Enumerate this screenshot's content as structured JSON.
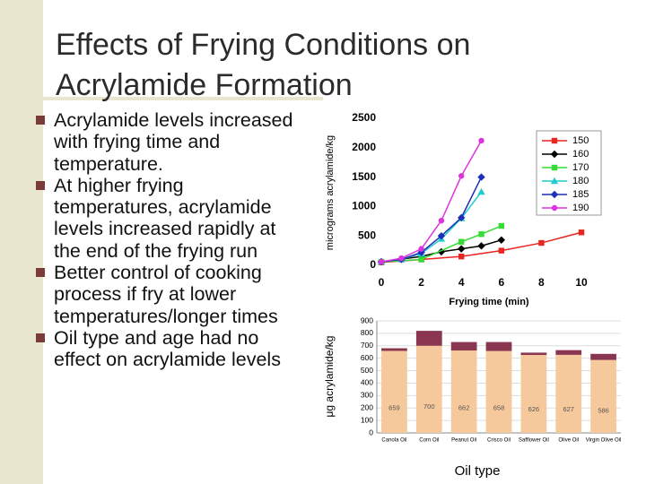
{
  "title": "Effects of Frying Conditions on Acrylamide Formation",
  "bullets": [
    "Acrylamide levels increased with frying time and temperature.",
    "At higher frying temperatures, acrylamide levels increased rapidly at the end of the frying run",
    "Better control of cooking process if fry at lower temperatures/longer times",
    "Oil type and age had no effect on acrylamide levels"
  ],
  "chart_data": [
    {
      "type": "line",
      "x_label": "Frying time (min)",
      "y_label": "micrograms acrylamide/kg",
      "xlim": [
        0,
        10
      ],
      "xticks": [
        0,
        2,
        4,
        6,
        8,
        10
      ],
      "ylim": [
        0,
        2500
      ],
      "yticks": [
        0,
        500,
        1000,
        1500,
        2000,
        2500
      ],
      "series": [
        {
          "name": "150",
          "color": "#e8251f",
          "marker": "square",
          "x": [
            0,
            2,
            4,
            6,
            8,
            10
          ],
          "values": [
            50,
            100,
            150,
            250,
            380,
            560
          ]
        },
        {
          "name": "160",
          "color": "#000000",
          "marker": "diamond",
          "x": [
            0,
            2,
            3,
            4,
            5,
            6
          ],
          "values": [
            60,
            150,
            230,
            280,
            330,
            430
          ]
        },
        {
          "name": "170",
          "color": "#33dd33",
          "marker": "square",
          "x": [
            0,
            2,
            4,
            5,
            6
          ],
          "values": [
            60,
            100,
            400,
            530,
            670
          ]
        },
        {
          "name": "180",
          "color": "#22cccc",
          "marker": "triangle",
          "x": [
            0,
            1,
            2,
            3,
            4,
            5
          ],
          "values": [
            60,
            100,
            200,
            450,
            800,
            1250
          ]
        },
        {
          "name": "185",
          "color": "#1c2fb8",
          "marker": "diamond",
          "x": [
            0,
            1,
            2,
            3,
            4,
            5
          ],
          "values": [
            60,
            100,
            220,
            500,
            810,
            1500
          ]
        },
        {
          "name": "190",
          "color": "#dd33dd",
          "marker": "circle",
          "x": [
            0,
            1,
            2,
            3,
            4,
            5
          ],
          "values": [
            60,
            120,
            280,
            760,
            1520,
            2120
          ]
        }
      ]
    },
    {
      "type": "stacked_bar",
      "x_label": "Oil type",
      "y_label": "μg acrylamide/kg",
      "categories": [
        "Canola Oil",
        "Corn Oil",
        "Peanut Oil",
        "Crisco Oil",
        "Safflower Oil",
        "Olive Oil",
        "Virgin Olive Oil"
      ],
      "ylim": [
        0,
        900
      ],
      "yticks": [
        0,
        100,
        200,
        300,
        400,
        500,
        600,
        700,
        800,
        900
      ],
      "series": [
        {
          "color": "#f6c99c",
          "values": [
            659,
            700,
            662,
            658,
            626,
            627,
            586
          ]
        },
        {
          "color": "#8a3650",
          "values": [
            21,
            120,
            68,
            72,
            19,
            38,
            49
          ]
        }
      ]
    }
  ]
}
